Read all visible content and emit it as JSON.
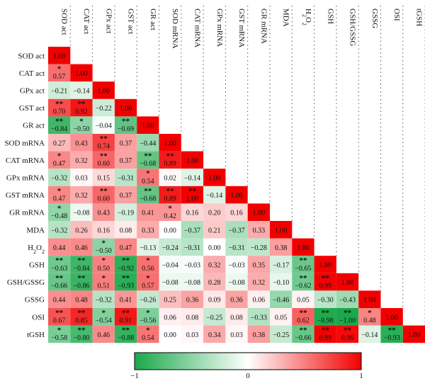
{
  "chart_data": {
    "type": "heatmap",
    "layout": "lower-triangle",
    "variables": [
      {
        "row": "SOD act",
        "col": "SOD act"
      },
      {
        "row": "CAT act",
        "col": "CAT act"
      },
      {
        "row": "GPx act",
        "col": "GPx act"
      },
      {
        "row": "GST act",
        "col": "GST act"
      },
      {
        "row": "GR act",
        "col": "GR act"
      },
      {
        "row": "SOD mRNA",
        "col": "SOD mRNA"
      },
      {
        "row": "CAT mRNA",
        "col": "CAT mRNA"
      },
      {
        "row": "GPx mRNA",
        "col": "GPx mRNA"
      },
      {
        "row": "GST mRNA",
        "col": "GST mRNA"
      },
      {
        "row": "GR mRNA",
        "col": "GR mRNA"
      },
      {
        "row": "MDA",
        "col": "MDA"
      },
      {
        "row": "H2O2",
        "col": "H2O2",
        "chem": true
      },
      {
        "row": "GSH",
        "col": "GSH"
      },
      {
        "row": "GSH/GSSG",
        "col": "GSH/GSSG"
      },
      {
        "row": "GSSG",
        "col": "GSSG"
      },
      {
        "row": "OSI",
        "col": "OSI"
      },
      {
        "row": "tGSH",
        "col": "tGSH"
      }
    ],
    "values": [
      [
        "1.00"
      ],
      [
        "0.57",
        "1.00"
      ],
      [
        "−0.21",
        "−0.14",
        "1.00"
      ],
      [
        "0.70",
        "0.92",
        "−0.22",
        "1.00"
      ],
      [
        "−0.84",
        "−0.50",
        "−0.04",
        "−0.69",
        "1.00"
      ],
      [
        "0.27",
        "0.43",
        "0.74",
        "0.37",
        "−0.44",
        "1.00"
      ],
      [
        "0.47",
        "0.32",
        "0.60",
        "0.37",
        "−0.68",
        "0.89",
        "1.00"
      ],
      [
        "−0.32",
        "0.03",
        "0.15",
        "−0.31",
        "0.54",
        "0.02",
        "−0.14",
        "1.00"
      ],
      [
        "0.47",
        "0.32",
        "0.60",
        "0.37",
        "−0.68",
        "0.89",
        "1.00",
        "−0.14",
        "1.00"
      ],
      [
        "−0.48",
        "−0.08",
        "0.43",
        "−0.19",
        "0.41",
        "0.42",
        "0.16",
        "0.20",
        "0.16",
        "1.00"
      ],
      [
        "−0.32",
        "0.26",
        "0.16",
        "0.08",
        "0.33",
        "0.00",
        "−0.37",
        "0.21",
        "−0.37",
        "0.33",
        "1.00"
      ],
      [
        "0.44",
        "0.46",
        "−0.50",
        "0.47",
        "−0.13",
        "−0.24",
        "−0.31",
        "0.00",
        "−0.31",
        "−0.28",
        "0.38",
        "1.00"
      ],
      [
        "−0.63",
        "−0.84",
        "0.50",
        "−0.92",
        "0.56",
        "−0.04",
        "−0.03",
        "0.32",
        "−0.03",
        "0.35",
        "−0.17",
        "−0.65",
        "1.00"
      ],
      [
        "−0.66",
        "−0.86",
        "0.51",
        "−0.93",
        "0.57",
        "−0.08",
        "−0.08",
        "0.28",
        "−0.08",
        "0.32",
        "−0.10",
        "−0.62",
        "0.99",
        "1.00"
      ],
      [
        "0.44",
        "0.48",
        "−0.32",
        "0.41",
        "−0.26",
        "0.25",
        "0.36",
        "0.09",
        "0.36",
        "0.06",
        "−0.46",
        "0.05",
        "−0.30",
        "−0.43",
        "1.00"
      ],
      [
        "0.67",
        "0.85",
        "−0.54",
        "0.91",
        "−0.56",
        "0.06",
        "0.08",
        "−0.25",
        "0.08",
        "−0.33",
        "0.05",
        "0.62",
        "−0.98",
        "−1.00",
        "0.48",
        "1.00"
      ],
      [
        "−0.58",
        "−0.80",
        "0.46",
        "−0.88",
        "0.54",
        "0.00",
        "0.03",
        "0.34",
        "0.03",
        "0.38",
        "−0.25",
        "−0.66",
        "0.99",
        "0.96",
        "−0.14",
        "−0.93",
        "1.00"
      ]
    ],
    "stars": [
      [
        ""
      ],
      [
        "*",
        ""
      ],
      [
        "",
        "",
        ""
      ],
      [
        "**",
        "**",
        "",
        ""
      ],
      [
        "**",
        "*",
        "",
        "**",
        ""
      ],
      [
        "",
        "",
        "**",
        "",
        "",
        ""
      ],
      [
        "*",
        "",
        "**",
        "",
        "**",
        "**",
        ""
      ],
      [
        "",
        "",
        "",
        "",
        "*",
        "",
        "",
        ""
      ],
      [
        "*",
        "",
        "**",
        "",
        "**",
        "**",
        "**",
        "",
        ""
      ],
      [
        "*",
        "",
        "",
        "",
        "",
        "*",
        "",
        "",
        "",
        ""
      ],
      [
        "",
        "",
        "",
        "",
        "",
        "",
        "",
        "",
        "",
        "",
        ""
      ],
      [
        "",
        "",
        "*",
        "",
        "",
        "",
        "",
        "",
        "",
        "",
        "",
        ""
      ],
      [
        "**",
        "**",
        "*",
        "**",
        "*",
        "",
        "",
        "",
        "",
        "",
        "",
        "**",
        ""
      ],
      [
        "**",
        "**",
        "*",
        "**",
        "*",
        "",
        "",
        "",
        "",
        "",
        "",
        "**",
        "**",
        ""
      ],
      [
        "",
        "",
        "",
        "",
        "",
        "",
        "",
        "",
        "",
        "",
        "",
        "",
        "",
        "",
        ""
      ],
      [
        "**",
        "**",
        "*",
        "**",
        "*",
        "",
        "",
        "",
        "",
        "",
        "",
        "**",
        "**",
        "**",
        "*",
        ""
      ],
      [
        "*",
        "**",
        "",
        "**",
        "*",
        "",
        "",
        "",
        "",
        "",
        "",
        "**",
        "**",
        "**",
        "",
        "**",
        ""
      ]
    ],
    "colorbar": {
      "min": -1,
      "mid": 0,
      "max": 1,
      "tick_labels": [
        "−1",
        "0",
        "1"
      ],
      "colors": {
        "negative": "#1aa84a",
        "zero": "#ffffff",
        "positive": "#f20000"
      }
    }
  }
}
